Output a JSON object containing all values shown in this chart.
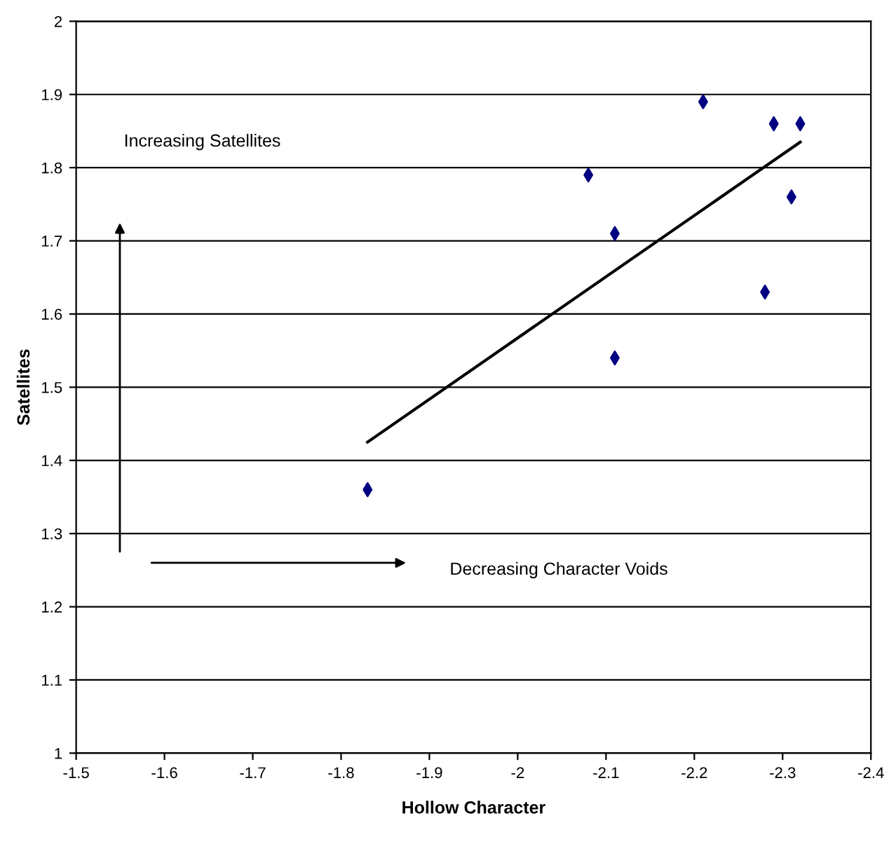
{
  "chart_data": {
    "type": "scatter",
    "xlabel": "Hollow Character",
    "ylabel": "Satellites",
    "xlim": [
      -1.5,
      -2.4
    ],
    "xticks": [
      -1.5,
      -1.6,
      -1.7,
      -1.8,
      -1.9,
      -2,
      -2.1,
      -2.2,
      -2.3,
      -2.4
    ],
    "ylim": [
      1,
      2
    ],
    "yticks": [
      1,
      1.1,
      1.2,
      1.3,
      1.4,
      1.5,
      1.6,
      1.7,
      1.8,
      1.9,
      2
    ],
    "grid": "y",
    "annotations": [
      "Increasing Satellites",
      "Decreasing Character Voids"
    ],
    "series": [
      {
        "marker": "diamond",
        "color": "#000080",
        "x": [
          -1.83,
          -2.08,
          -2.11,
          -2.11,
          -2.21,
          -2.28,
          -2.29,
          -2.31,
          -2.32
        ],
        "values": [
          1.36,
          1.79,
          1.71,
          1.54,
          1.89,
          1.63,
          1.86,
          1.76,
          1.86
        ]
      },
      {
        "type": "line",
        "color": "#000000",
        "x": [
          -1.83,
          -2.32
        ],
        "values": [
          1.425,
          1.835
        ]
      }
    ]
  }
}
